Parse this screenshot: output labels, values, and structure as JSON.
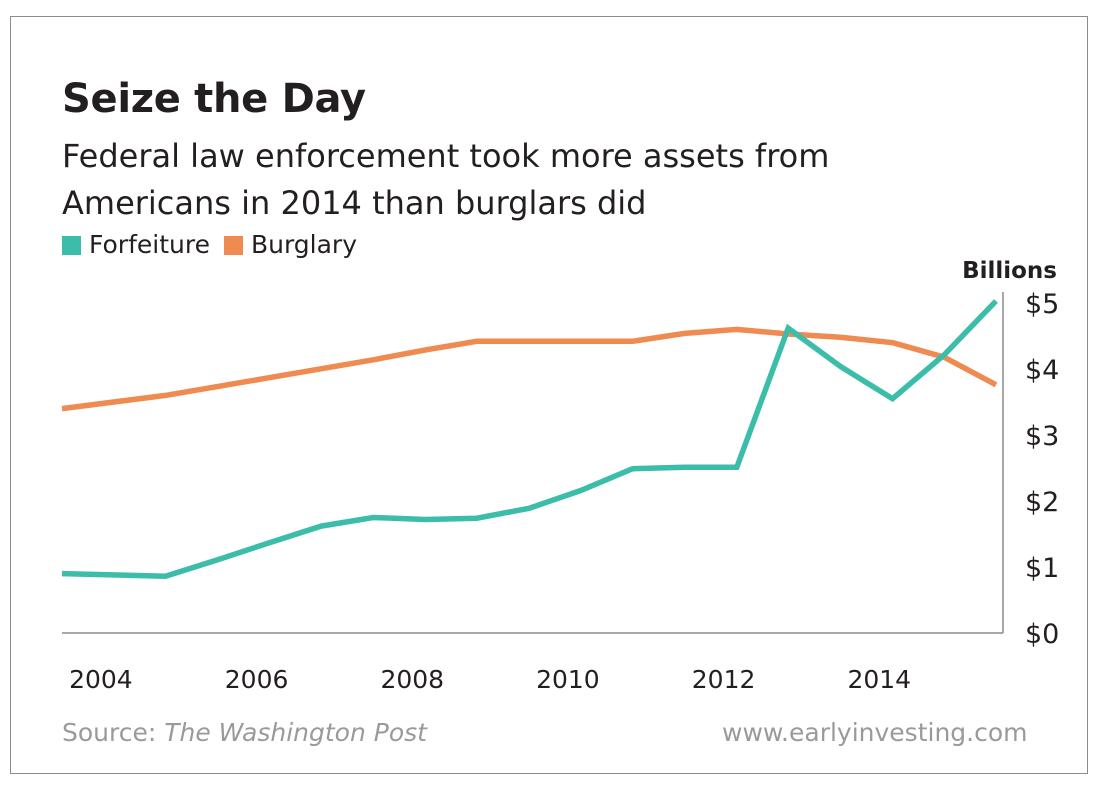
{
  "header": {
    "title": "Seize the Day",
    "subtitle_line1": "Federal law enforcement took more assets from",
    "subtitle_line2": "Americans in 2014 than burglars did"
  },
  "footer": {
    "source_prefix": "Source: ",
    "source_publication": "The Washington Post",
    "website": "www.earlyinvesting.com"
  },
  "colors": {
    "forfeiture": "#3bbdaa",
    "burglary": "#ef8a50",
    "text": "#231f20",
    "muted": "#9a9a9a",
    "axis": "#8c8c8c"
  },
  "chart_data": {
    "type": "line",
    "ylabel": "Billions",
    "xlim": [
      2003.5,
      2015.5
    ],
    "ylim": [
      0,
      5
    ],
    "x_ticks": [
      2004,
      2006,
      2008,
      2010,
      2012,
      2014
    ],
    "x_tick_labels": [
      "2004",
      "2006",
      "2008",
      "2010",
      "2012",
      "2014"
    ],
    "y_ticks": [
      0,
      1,
      2,
      3,
      4,
      5
    ],
    "y_tick_labels": [
      "$0",
      "$1",
      "$2",
      "$3",
      "$4",
      "$5"
    ],
    "y_axis_position": "right",
    "grid": false,
    "legend_position": "top-left",
    "series": [
      {
        "name": "Forfeiture",
        "color": "#3bbdaa",
        "x": [
          2003.5,
          2004.83,
          2005.5,
          2006.17,
          2006.83,
          2007.5,
          2008.17,
          2008.83,
          2009.5,
          2010.17,
          2010.83,
          2011.5,
          2012.17,
          2012.83,
          2013.5,
          2014.17,
          2014.83,
          2015.5
        ],
        "y": [
          0.9,
          0.86,
          1.11,
          1.37,
          1.62,
          1.75,
          1.72,
          1.74,
          1.89,
          2.16,
          2.49,
          2.51,
          2.51,
          4.62,
          4.04,
          3.55,
          4.21,
          5.03
        ]
      },
      {
        "name": "Burglary",
        "color": "#ef8a50",
        "x": [
          2003.5,
          2004.83,
          2006.17,
          2007.5,
          2008.17,
          2008.83,
          2009.5,
          2010.17,
          2010.83,
          2011.5,
          2012.17,
          2012.83,
          2013.5,
          2014.17,
          2014.83,
          2015.5
        ],
        "y": [
          3.4,
          3.6,
          3.87,
          4.14,
          4.29,
          4.42,
          4.42,
          4.42,
          4.42,
          4.54,
          4.6,
          4.53,
          4.48,
          4.4,
          4.18,
          3.76
        ]
      }
    ]
  }
}
